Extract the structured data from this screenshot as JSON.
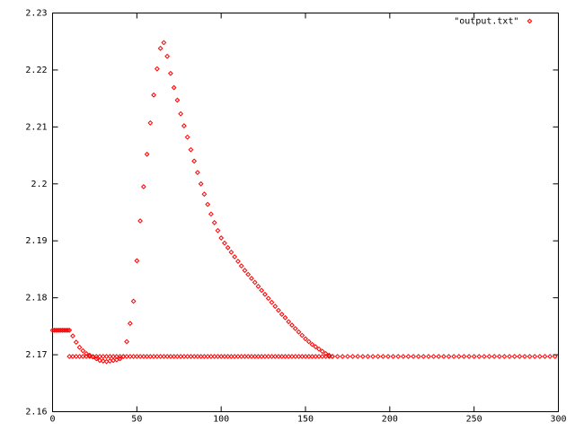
{
  "chart_data": {
    "type": "scatter",
    "xlim": [
      0,
      300
    ],
    "xticks": [
      0,
      50,
      100,
      150,
      200,
      250,
      300
    ],
    "ylim": [
      2.16,
      2.23
    ],
    "yticks": [
      2.16,
      2.17,
      2.18,
      2.19,
      2.2,
      2.21,
      2.22,
      2.23
    ],
    "legend": "top-right",
    "series": [
      {
        "name": "\"output.txt\"",
        "color": "#ff0000",
        "x": [
          0,
          1,
          2,
          3,
          4,
          5,
          6,
          7,
          8,
          9,
          10,
          12,
          14,
          16,
          18,
          20,
          22,
          24,
          26,
          28,
          30,
          32,
          34,
          36,
          38,
          40,
          42,
          44,
          46,
          48,
          50,
          52,
          54,
          56,
          58,
          60,
          62,
          64,
          66,
          68,
          70,
          72,
          74,
          76,
          78,
          80,
          82,
          84,
          86,
          88,
          90,
          92,
          94,
          96,
          98,
          100,
          102,
          104,
          106,
          108,
          110,
          112,
          114,
          116,
          118,
          120,
          122,
          124,
          126,
          128,
          130,
          132,
          134,
          136,
          138,
          140,
          142,
          144,
          146,
          148,
          150,
          152,
          154,
          156,
          158,
          160,
          162,
          164,
          166,
          10,
          12,
          14,
          16,
          18,
          20,
          22,
          24,
          26,
          28,
          30,
          32,
          34,
          36,
          38,
          40,
          42,
          44,
          46,
          48,
          50,
          52,
          54,
          56,
          58,
          60,
          62,
          64,
          66,
          68,
          70,
          72,
          74,
          76,
          78,
          80,
          82,
          84,
          86,
          88,
          90,
          92,
          94,
          96,
          98,
          100,
          102,
          104,
          106,
          108,
          110,
          112,
          114,
          116,
          118,
          120,
          122,
          124,
          126,
          128,
          130,
          132,
          134,
          136,
          138,
          140,
          142,
          144,
          146,
          148,
          150,
          152,
          154,
          156,
          158,
          160,
          162,
          164,
          166,
          169,
          172,
          175,
          178,
          181,
          184,
          187,
          190,
          193,
          196,
          199,
          202,
          205,
          208,
          211,
          214,
          217,
          220,
          223,
          226,
          229,
          232,
          235,
          238,
          241,
          244,
          247,
          250,
          253,
          256,
          259,
          262,
          265,
          268,
          271,
          274,
          277,
          280,
          283,
          286,
          289,
          292,
          295,
          298
        ],
        "values": [
          2.1743,
          2.1743,
          2.1743,
          2.1743,
          2.1743,
          2.1743,
          2.1743,
          2.1743,
          2.1743,
          2.1743,
          2.1743,
          2.1733,
          2.1722,
          2.1713,
          2.1707,
          2.1702,
          2.1699,
          2.1696,
          2.1693,
          2.169,
          2.1689,
          2.1688,
          2.1689,
          2.169,
          2.1691,
          2.1693,
          2.1697,
          2.1723,
          2.1755,
          2.1794,
          2.1865,
          2.1935,
          2.1995,
          2.2052,
          2.2107,
          2.2156,
          2.2202,
          2.2238,
          2.2248,
          2.2224,
          2.2194,
          2.2169,
          2.2147,
          2.2123,
          2.2102,
          2.2082,
          2.206,
          2.204,
          2.202,
          2.2,
          2.1982,
          2.1964,
          2.1947,
          2.1932,
          2.1918,
          2.1905,
          2.1896,
          2.1888,
          2.188,
          2.1872,
          2.1864,
          2.1856,
          2.1848,
          2.1841,
          2.1834,
          2.1827,
          2.182,
          2.1813,
          2.1806,
          2.1799,
          2.1792,
          2.1785,
          2.1778,
          2.1771,
          2.1765,
          2.1758,
          2.1752,
          2.1746,
          2.174,
          2.1734,
          2.1728,
          2.1723,
          2.1718,
          2.1714,
          2.171,
          2.1706,
          2.1702,
          2.1699,
          2.1697,
          2.1697,
          2.1697,
          2.1697,
          2.1697,
          2.1697,
          2.1697,
          2.1697,
          2.1697,
          2.1697,
          2.1697,
          2.1697,
          2.1697,
          2.1697,
          2.1697,
          2.1697,
          2.1697,
          2.1697,
          2.1697,
          2.1697,
          2.1697,
          2.1697,
          2.1697,
          2.1697,
          2.1697,
          2.1697,
          2.1697,
          2.1697,
          2.1697,
          2.1697,
          2.1697,
          2.1697,
          2.1697,
          2.1697,
          2.1697,
          2.1697,
          2.1697,
          2.1697,
          2.1697,
          2.1697,
          2.1697,
          2.1697,
          2.1697,
          2.1697,
          2.1697,
          2.1697,
          2.1697,
          2.1697,
          2.1697,
          2.1697,
          2.1697,
          2.1697,
          2.1697,
          2.1697,
          2.1697,
          2.1697,
          2.1697,
          2.1697,
          2.1697,
          2.1697,
          2.1697,
          2.1697,
          2.1697,
          2.1697,
          2.1697,
          2.1697,
          2.1697,
          2.1697,
          2.1697,
          2.1697,
          2.1697,
          2.1697,
          2.1697,
          2.1697,
          2.1697,
          2.1697,
          2.1697,
          2.1697,
          2.1697,
          2.1697,
          2.1697,
          2.1697,
          2.1697,
          2.1697,
          2.1697,
          2.1697,
          2.1697,
          2.1697,
          2.1697,
          2.1697,
          2.1697,
          2.1697,
          2.1697,
          2.1697,
          2.1697,
          2.1697,
          2.1697,
          2.1697,
          2.1697,
          2.1697,
          2.1697,
          2.1697,
          2.1697,
          2.1697,
          2.1697,
          2.1697,
          2.1697,
          2.1697,
          2.1697,
          2.1697,
          2.1697,
          2.1697,
          2.1697,
          2.1697,
          2.1697,
          2.1697,
          2.1697,
          2.1697,
          2.1697,
          2.1697,
          2.1697,
          2.1697,
          2.1697,
          2.1697
        ]
      }
    ]
  }
}
